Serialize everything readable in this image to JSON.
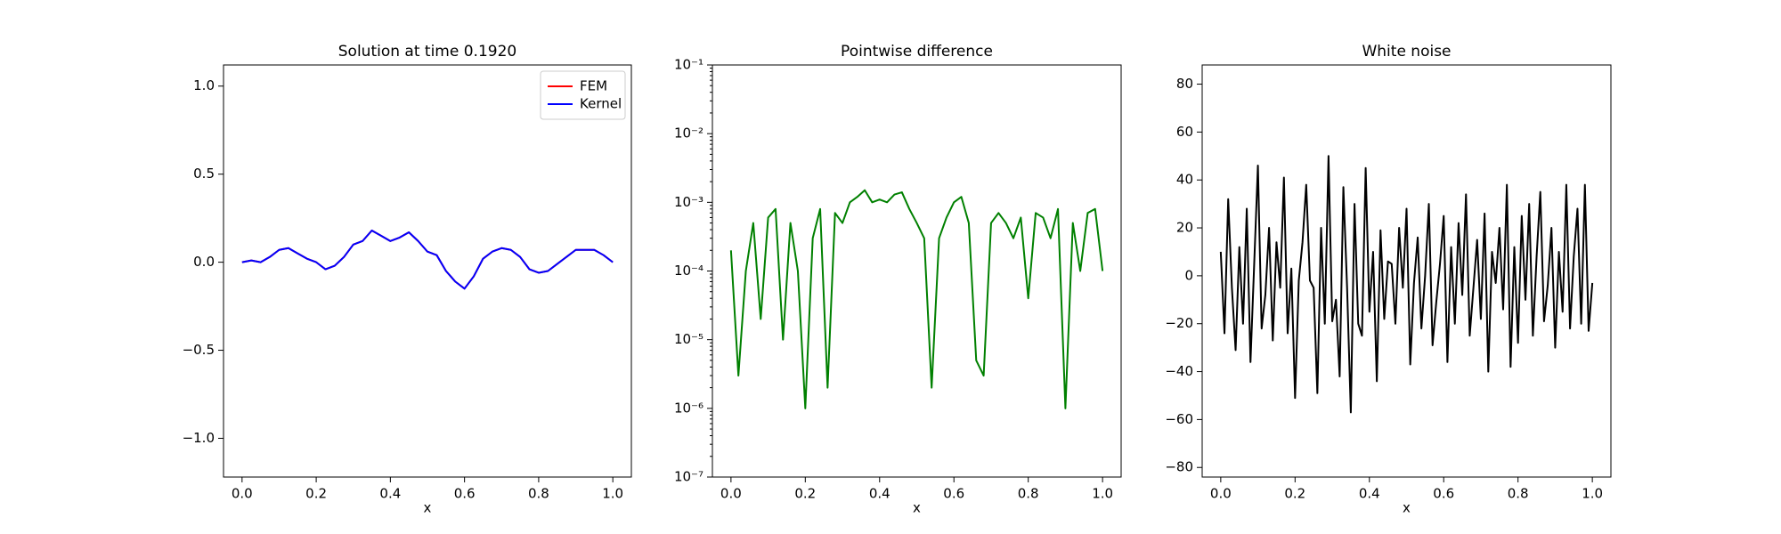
{
  "chart_data": [
    {
      "type": "line",
      "title": "Solution at time 0.1920",
      "xlabel": "x",
      "x": [
        0,
        0.025,
        0.05,
        0.075,
        0.1,
        0.125,
        0.15,
        0.175,
        0.2,
        0.225,
        0.25,
        0.275,
        0.3,
        0.325,
        0.35,
        0.375,
        0.4,
        0.425,
        0.45,
        0.475,
        0.5,
        0.525,
        0.55,
        0.575,
        0.6,
        0.625,
        0.65,
        0.675,
        0.7,
        0.725,
        0.75,
        0.775,
        0.8,
        0.825,
        0.85,
        0.875,
        0.9,
        0.925,
        0.95,
        0.975,
        1
      ],
      "series": [
        {
          "name": "FEM",
          "color": "#ff0000",
          "values": [
            0,
            0.01,
            0,
            0.03,
            0.07,
            0.08,
            0.05,
            0.02,
            0,
            -0.04,
            -0.02,
            0.03,
            0.1,
            0.12,
            0.18,
            0.15,
            0.12,
            0.14,
            0.17,
            0.12,
            0.06,
            0.04,
            -0.05,
            -0.11,
            -0.15,
            -0.08,
            0.02,
            0.06,
            0.08,
            0.07,
            0.03,
            -0.04,
            -0.06,
            -0.05,
            -0.01,
            0.03,
            0.07,
            0.07,
            0.07,
            0.04,
            0
          ]
        },
        {
          "name": "Kernel",
          "color": "#0000ff",
          "values": [
            0,
            0.01,
            0,
            0.03,
            0.07,
            0.08,
            0.05,
            0.02,
            0,
            -0.04,
            -0.02,
            0.03,
            0.1,
            0.12,
            0.18,
            0.15,
            0.12,
            0.14,
            0.17,
            0.12,
            0.06,
            0.04,
            -0.05,
            -0.11,
            -0.15,
            -0.08,
            0.02,
            0.06,
            0.08,
            0.07,
            0.03,
            -0.04,
            -0.06,
            -0.05,
            -0.01,
            0.03,
            0.07,
            0.07,
            0.07,
            0.04,
            0
          ]
        }
      ],
      "legend": "upper right",
      "xlim": [
        -0.05,
        1.05
      ],
      "xticks": [
        {
          "value": 0,
          "label": "0.0"
        },
        0.2,
        0.4,
        0.6,
        0.8,
        {
          "value": 1,
          "label": "1.0"
        }
      ],
      "ylim": [
        -1.22,
        1.12
      ],
      "yticks": [
        {
          "value": -1,
          "label": "−1.0"
        },
        {
          "value": -0.5,
          "label": "−0.5"
        },
        {
          "value": 0,
          "label": "0.0"
        },
        0.5,
        {
          "value": 1,
          "label": "1.0"
        }
      ]
    },
    {
      "type": "line",
      "title": "Pointwise difference",
      "xlabel": "x",
      "yscale": "log",
      "color": "#008000",
      "x": [
        0,
        0.02,
        0.04,
        0.06,
        0.08,
        0.1,
        0.12,
        0.14,
        0.16,
        0.18,
        0.2,
        0.22,
        0.24,
        0.26,
        0.28,
        0.3,
        0.32,
        0.34,
        0.36,
        0.38,
        0.4,
        0.42,
        0.44,
        0.46,
        0.48,
        0.5,
        0.52,
        0.54,
        0.56,
        0.58,
        0.6,
        0.62,
        0.64,
        0.66,
        0.68,
        0.7,
        0.72,
        0.74,
        0.76,
        0.78,
        0.8,
        0.82,
        0.84,
        0.86,
        0.88,
        0.9,
        0.92,
        0.94,
        0.96,
        0.98,
        1
      ],
      "values": [
        0.0002,
        3e-06,
        0.0001,
        0.0005,
        2e-05,
        0.0006,
        0.0008,
        1e-05,
        0.0005,
        0.0001,
        1e-06,
        0.0003,
        0.0008,
        2e-06,
        0.0007,
        0.0005,
        0.001,
        0.0012,
        0.0015,
        0.001,
        0.0011,
        0.001,
        0.0013,
        0.0014,
        0.0008,
        0.0005,
        0.0003,
        2e-06,
        0.0003,
        0.0006,
        0.001,
        0.0012,
        0.0005,
        5e-06,
        3e-06,
        0.0005,
        0.0007,
        0.0005,
        0.0003,
        0.0006,
        4e-05,
        0.0007,
        0.0006,
        0.0003,
        0.0008,
        1e-06,
        0.0005,
        0.0001,
        0.0007,
        0.0008,
        0.0001
      ],
      "xlim": [
        -0.05,
        1.05
      ],
      "xticks": [
        {
          "value": 0,
          "label": "0.0"
        },
        0.2,
        0.4,
        0.6,
        0.8,
        {
          "value": 1,
          "label": "1.0"
        }
      ],
      "ylim": [
        1e-07,
        0.1
      ],
      "yticks": [
        {
          "value": 1e-07,
          "label": "10⁻⁷"
        },
        {
          "value": 1e-06,
          "label": "10⁻⁶"
        },
        {
          "value": 1e-05,
          "label": "10⁻⁵"
        },
        {
          "value": 0.0001,
          "label": "10⁻⁴"
        },
        {
          "value": 0.001,
          "label": "10⁻³"
        },
        {
          "value": 0.01,
          "label": "10⁻²"
        },
        {
          "value": 0.1,
          "label": "10⁻¹"
        }
      ]
    },
    {
      "type": "line",
      "title": "White noise",
      "xlabel": "x",
      "color": "#000000",
      "x": [
        0,
        0.01,
        0.02,
        0.03,
        0.04,
        0.05,
        0.06,
        0.07,
        0.08,
        0.09,
        0.1,
        0.11,
        0.12,
        0.13,
        0.14,
        0.15,
        0.16,
        0.17,
        0.18,
        0.19,
        0.2,
        0.21,
        0.22,
        0.23,
        0.24,
        0.25,
        0.26,
        0.27,
        0.28,
        0.29,
        0.3,
        0.31,
        0.32,
        0.33,
        0.34,
        0.35,
        0.36,
        0.37,
        0.38,
        0.39,
        0.4,
        0.41,
        0.42,
        0.43,
        0.44,
        0.45,
        0.46,
        0.47,
        0.48,
        0.49,
        0.5,
        0.51,
        0.52,
        0.53,
        0.54,
        0.55,
        0.56,
        0.57,
        0.58,
        0.59,
        0.6,
        0.61,
        0.62,
        0.63,
        0.64,
        0.65,
        0.66,
        0.67,
        0.68,
        0.69,
        0.7,
        0.71,
        0.72,
        0.73,
        0.74,
        0.75,
        0.76,
        0.77,
        0.78,
        0.79,
        0.8,
        0.81,
        0.82,
        0.83,
        0.84,
        0.85,
        0.86,
        0.87,
        0.88,
        0.89,
        0.9,
        0.91,
        0.92,
        0.93,
        0.94,
        0.95,
        0.96,
        0.97,
        0.98,
        0.99,
        1
      ],
      "values": [
        10,
        -24,
        32,
        -5,
        -31,
        12,
        -20,
        28,
        -36,
        5,
        46,
        -22,
        -8,
        20,
        -27,
        14,
        -5,
        41,
        -24,
        3,
        -51,
        -2,
        14,
        38,
        -2,
        -5,
        -49,
        20,
        -20,
        50,
        -19,
        -10,
        -42,
        37,
        -5,
        -57,
        30,
        -20,
        -25,
        45,
        -15,
        10,
        -44,
        19,
        -18,
        6,
        5,
        -20,
        20,
        -5,
        28,
        -37,
        -3,
        16,
        -22,
        0,
        30,
        -29,
        -11,
        5,
        25,
        -36,
        12,
        -20,
        22,
        -8,
        34,
        -25,
        -5,
        15,
        -18,
        26,
        -40,
        10,
        -3,
        20,
        -14,
        38,
        -38,
        12,
        -28,
        25,
        -10,
        30,
        -25,
        8,
        35,
        -19,
        -4,
        20,
        -30,
        10,
        -15,
        38,
        -22,
        8,
        28,
        -20,
        38,
        -23,
        -3
      ],
      "xlim": [
        -0.05,
        1.05
      ],
      "xticks": [
        {
          "value": 0,
          "label": "0.0"
        },
        0.2,
        0.4,
        0.6,
        0.8,
        {
          "value": 1,
          "label": "1.0"
        }
      ],
      "ylim": [
        -84,
        88
      ],
      "yticks": [
        {
          "value": -80,
          "label": "−80"
        },
        {
          "value": -60,
          "label": "−60"
        },
        {
          "value": -40,
          "label": "−40"
        },
        {
          "value": -20,
          "label": "−20"
        },
        0,
        20,
        40,
        60,
        80
      ]
    }
  ]
}
